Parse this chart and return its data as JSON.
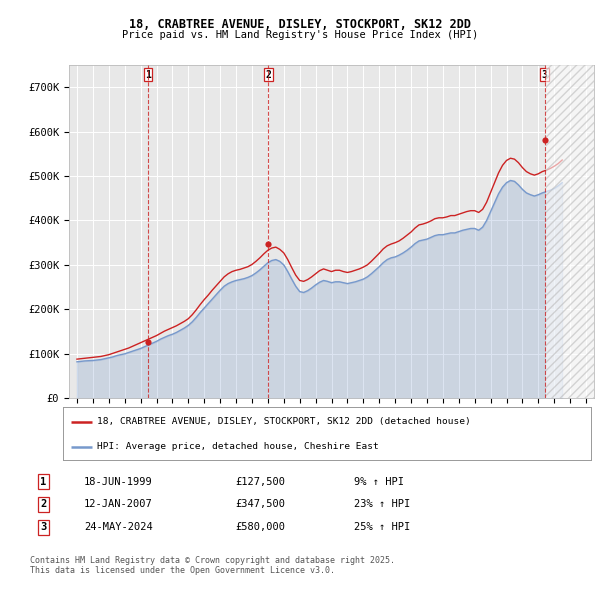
{
  "title_line1": "18, CRABTREE AVENUE, DISLEY, STOCKPORT, SK12 2DD",
  "title_line2": "Price paid vs. HM Land Registry's House Price Index (HPI)",
  "background_color": "#ffffff",
  "plot_bg_color": "#e8e8e8",
  "grid_color": "#ffffff",
  "red_line_color": "#cc2222",
  "blue_line_color": "#7799cc",
  "sale_marker_color": "#cc2222",
  "dashed_line_color": "#cc2222",
  "legend_label_red": "18, CRABTREE AVENUE, DISLEY, STOCKPORT, SK12 2DD (detached house)",
  "legend_label_blue": "HPI: Average price, detached house, Cheshire East",
  "transactions": [
    {
      "num": 1,
      "date": "18-JUN-1999",
      "price": 127500,
      "pct": "9%",
      "dir": "↑",
      "x_year": 1999.46
    },
    {
      "num": 2,
      "date": "12-JAN-2007",
      "price": 347500,
      "pct": "23%",
      "dir": "↑",
      "x_year": 2007.03
    },
    {
      "num": 3,
      "date": "24-MAY-2024",
      "price": 580000,
      "pct": "25%",
      "dir": "↑",
      "x_year": 2024.4
    }
  ],
  "footer_line1": "Contains HM Land Registry data © Crown copyright and database right 2025.",
  "footer_line2": "This data is licensed under the Open Government Licence v3.0.",
  "ylim": [
    0,
    750000
  ],
  "xlim_start": 1994.5,
  "xlim_end": 2027.5,
  "yticks": [
    0,
    100000,
    200000,
    300000,
    400000,
    500000,
    600000,
    700000
  ],
  "ytick_labels": [
    "£0",
    "£100K",
    "£200K",
    "£300K",
    "£400K",
    "£500K",
    "£600K",
    "£700K"
  ],
  "xticks": [
    1995,
    1996,
    1997,
    1998,
    1999,
    2000,
    2001,
    2002,
    2003,
    2004,
    2005,
    2006,
    2007,
    2008,
    2009,
    2010,
    2011,
    2012,
    2013,
    2014,
    2015,
    2016,
    2017,
    2018,
    2019,
    2020,
    2021,
    2022,
    2023,
    2024,
    2025,
    2026,
    2027
  ],
  "hpi_data": {
    "years": [
      1995.0,
      1995.25,
      1995.5,
      1995.75,
      1996.0,
      1996.25,
      1996.5,
      1996.75,
      1997.0,
      1997.25,
      1997.5,
      1997.75,
      1998.0,
      1998.25,
      1998.5,
      1998.75,
      1999.0,
      1999.25,
      1999.5,
      1999.75,
      2000.0,
      2000.25,
      2000.5,
      2000.75,
      2001.0,
      2001.25,
      2001.5,
      2001.75,
      2002.0,
      2002.25,
      2002.5,
      2002.75,
      2003.0,
      2003.25,
      2003.5,
      2003.75,
      2004.0,
      2004.25,
      2004.5,
      2004.75,
      2005.0,
      2005.25,
      2005.5,
      2005.75,
      2006.0,
      2006.25,
      2006.5,
      2006.75,
      2007.0,
      2007.25,
      2007.5,
      2007.75,
      2008.0,
      2008.25,
      2008.5,
      2008.75,
      2009.0,
      2009.25,
      2009.5,
      2009.75,
      2010.0,
      2010.25,
      2010.5,
      2010.75,
      2011.0,
      2011.25,
      2011.5,
      2011.75,
      2012.0,
      2012.25,
      2012.5,
      2012.75,
      2013.0,
      2013.25,
      2013.5,
      2013.75,
      2014.0,
      2014.25,
      2014.5,
      2014.75,
      2015.0,
      2015.25,
      2015.5,
      2015.75,
      2016.0,
      2016.25,
      2016.5,
      2016.75,
      2017.0,
      2017.25,
      2017.5,
      2017.75,
      2018.0,
      2018.25,
      2018.5,
      2018.75,
      2019.0,
      2019.25,
      2019.5,
      2019.75,
      2020.0,
      2020.25,
      2020.5,
      2020.75,
      2021.0,
      2021.25,
      2021.5,
      2021.75,
      2022.0,
      2022.25,
      2022.5,
      2022.75,
      2023.0,
      2023.25,
      2023.5,
      2023.75,
      2024.0,
      2024.25,
      2024.5,
      2024.75,
      2025.0,
      2025.25,
      2025.5
    ],
    "hpi_values": [
      82000,
      83000,
      84000,
      84500,
      85000,
      86000,
      87000,
      89000,
      91000,
      93000,
      96000,
      98000,
      100000,
      103000,
      106000,
      109000,
      112000,
      116000,
      120000,
      124000,
      128000,
      133000,
      137000,
      141000,
      144000,
      148000,
      153000,
      158000,
      164000,
      172000,
      182000,
      193000,
      203000,
      213000,
      223000,
      233000,
      243000,
      252000,
      258000,
      262000,
      265000,
      267000,
      269000,
      272000,
      276000,
      282000,
      289000,
      297000,
      305000,
      310000,
      312000,
      308000,
      300000,
      285000,
      268000,
      252000,
      240000,
      238000,
      242000,
      248000,
      255000,
      261000,
      265000,
      263000,
      260000,
      262000,
      262000,
      260000,
      258000,
      260000,
      262000,
      265000,
      268000,
      273000,
      280000,
      288000,
      296000,
      305000,
      312000,
      316000,
      318000,
      322000,
      327000,
      333000,
      340000,
      348000,
      354000,
      356000,
      358000,
      362000,
      366000,
      368000,
      368000,
      370000,
      372000,
      372000,
      375000,
      378000,
      380000,
      382000,
      382000,
      378000,
      385000,
      400000,
      420000,
      440000,
      460000,
      475000,
      485000,
      490000,
      488000,
      480000,
      470000,
      462000,
      458000,
      455000,
      458000,
      462000,
      465000,
      468000,
      472000,
      478000,
      485000
    ],
    "red_values": [
      88000,
      89000,
      90000,
      91000,
      92000,
      93000,
      94000,
      96000,
      98000,
      101000,
      104000,
      107000,
      110000,
      113000,
      117000,
      121000,
      125000,
      129000,
      133000,
      137000,
      141000,
      146000,
      151000,
      155000,
      159000,
      163000,
      168000,
      173000,
      179000,
      188000,
      199000,
      211000,
      222000,
      232000,
      243000,
      253000,
      263000,
      273000,
      280000,
      285000,
      288000,
      290000,
      293000,
      296000,
      301000,
      308000,
      316000,
      325000,
      333000,
      338000,
      340000,
      335000,
      327000,
      312000,
      294000,
      277000,
      265000,
      263000,
      267000,
      273000,
      280000,
      287000,
      291000,
      288000,
      285000,
      288000,
      288000,
      285000,
      283000,
      285000,
      288000,
      291000,
      295000,
      300000,
      308000,
      317000,
      326000,
      336000,
      343000,
      347000,
      350000,
      354000,
      360000,
      367000,
      374000,
      383000,
      390000,
      392000,
      395000,
      399000,
      404000,
      406000,
      406000,
      408000,
      411000,
      411000,
      414000,
      417000,
      420000,
      422000,
      422000,
      418000,
      425000,
      441000,
      463000,
      485000,
      507000,
      524000,
      535000,
      540000,
      538000,
      530000,
      519000,
      510000,
      505000,
      502000,
      505000,
      510000,
      513000,
      517000,
      522000,
      528000,
      536000
    ]
  },
  "hatch_start": 2024.5,
  "trans_marker_prices": [
    127500,
    347500,
    580000
  ]
}
